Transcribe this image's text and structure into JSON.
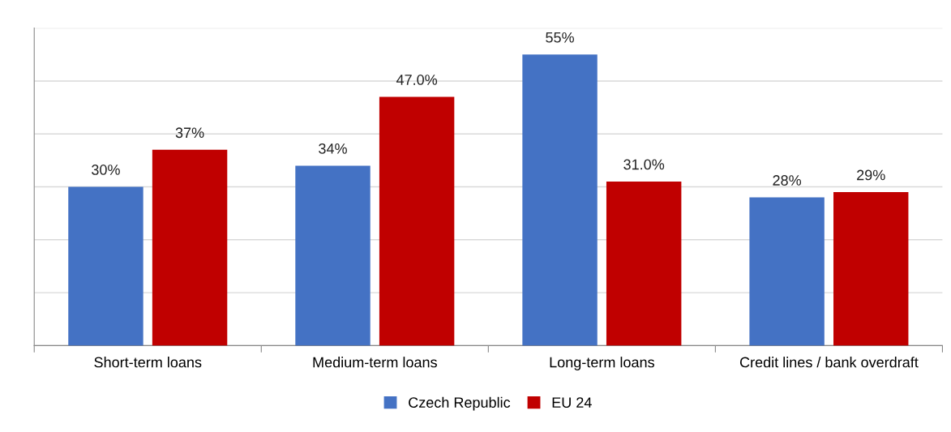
{
  "chart_data": {
    "type": "bar",
    "categories": [
      "Short-term loans",
      "Medium-term loans",
      "Long-term loans",
      "Credit lines / bank overdraft"
    ],
    "series": [
      {
        "name": "Czech Republic",
        "color": "#4472c4",
        "values": [
          30,
          34,
          55,
          28
        ],
        "value_labels": [
          "30%",
          "34%",
          "55%",
          "28%"
        ]
      },
      {
        "name": "EU 24",
        "color": "#c00000",
        "values": [
          37,
          47.0,
          31.0,
          29
        ],
        "value_labels": [
          "37%",
          "47.0%",
          "31.0%",
          "29%"
        ]
      }
    ],
    "ylim": [
      0,
      60
    ],
    "yticks": [
      {
        "value": 0,
        "label": null
      },
      {
        "value": 10,
        "label": null
      },
      {
        "value": 20,
        "label": null
      },
      {
        "value": 30,
        "label": null
      },
      {
        "value": 40,
        "label": null
      },
      {
        "value": 50,
        "label": null
      },
      {
        "value": 60,
        "label": null
      }
    ],
    "tick_labels": "x",
    "grid": "y",
    "legend": "bottom"
  }
}
